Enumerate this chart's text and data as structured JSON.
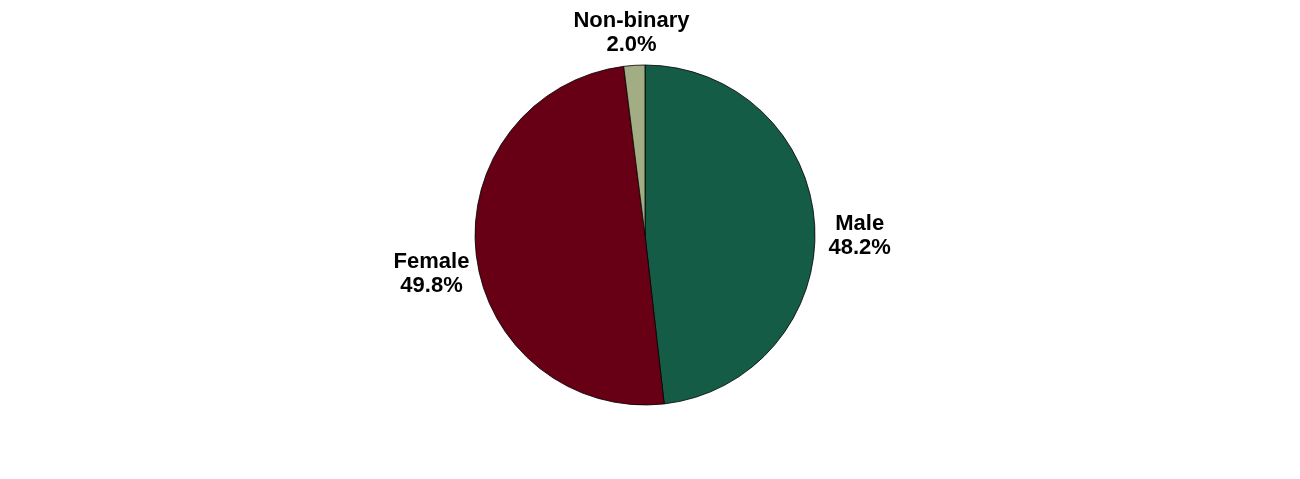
{
  "chart_data": {
    "type": "pie",
    "categories": [
      "Male",
      "Female",
      "Non-binary"
    ],
    "values": [
      48.2,
      49.8,
      2.0
    ],
    "value_labels": [
      "48.2%",
      "49.8%",
      "2.0%"
    ],
    "colors": [
      "#145c45",
      "#670015",
      "#a3ad83"
    ],
    "legend": false
  }
}
